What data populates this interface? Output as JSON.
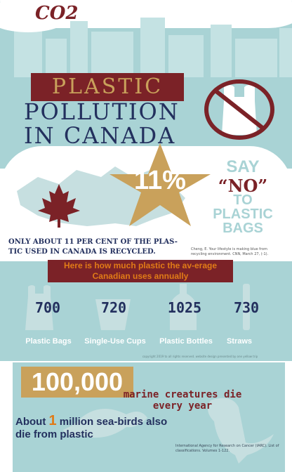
{
  "header": {
    "title": "CO2"
  },
  "headline": {
    "line1": "PLASTIC",
    "line2": "POLLUTION",
    "line3": "IN CANADA"
  },
  "recycle": {
    "percent": "11%",
    "note": "ONLY ABOUT 11 PER CENT OF THE PLAS-TIC USED IN CANADA IS RECYCLED.",
    "citation": "Cheng, E. Your lifestyle is making blue from recycling environment. CNN, March 27, (-1)."
  },
  "slogan": {
    "say": "SAY",
    "no": "“NO”",
    "to": "TO",
    "plastic": "PLASTIC",
    "bags": "BAGS"
  },
  "usage": {
    "heading": "Here is how much plastic the av-erage Canadian uses annually",
    "items": [
      {
        "value": "700",
        "label": "Plastic Bags",
        "icon": "plastic-bag-icon"
      },
      {
        "value": "720",
        "label": "Single-Use Cups",
        "icon": "cup-icon"
      },
      {
        "value": "1025",
        "label": "Plastic Bottles",
        "icon": "bottle-icon"
      },
      {
        "value": "730",
        "label": "Straws",
        "icon": "straw-icon"
      }
    ],
    "copyright": "copyright 2019 to all rights reserved. website design presented by one yellow trip"
  },
  "marine": {
    "number": "100,000",
    "text": "marine creatures die every year"
  },
  "seabirds": {
    "pre": "About",
    "number": "1",
    "post": "million sea-birds also die from plastic",
    "citation": "International Agency for Research on Cancer (IARC). List of classifications. Volumes 1-122."
  },
  "colors": {
    "teal": "#a9d3d5",
    "maroon": "#7b2227",
    "gold": "#c9a15b",
    "navy": "#23305e",
    "orange": "#e07b17"
  }
}
